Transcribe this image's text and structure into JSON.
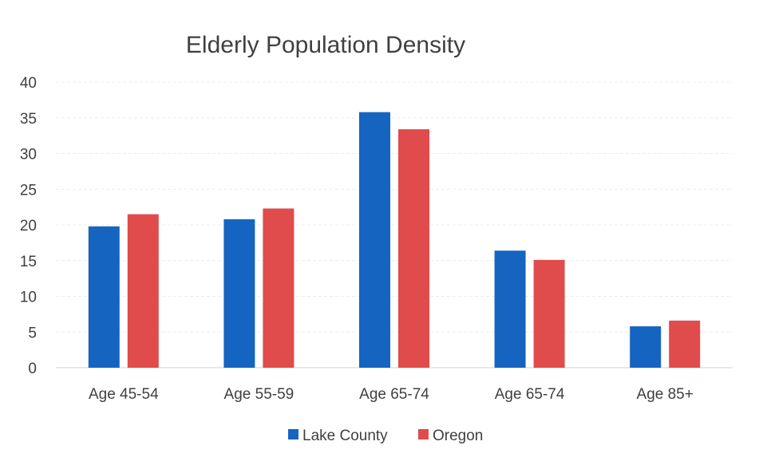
{
  "chart_data": {
    "type": "bar",
    "title": "Elderly Population Density",
    "xlabel": "",
    "ylabel": "",
    "categories": [
      "Age 45-54",
      "Age 55-59",
      "Age 65-74",
      "Age 65-74",
      "Age 85+"
    ],
    "series": [
      {
        "name": "Lake County",
        "values": [
          19.8,
          20.8,
          35.8,
          16.4,
          5.8
        ],
        "color": "#1565c0"
      },
      {
        "name": "Oregon",
        "values": [
          21.5,
          22.3,
          33.4,
          15.1,
          6.6
        ],
        "color": "#e04b4b"
      }
    ],
    "ylim": [
      0,
      40
    ],
    "yticks": [
      0,
      5,
      10,
      15,
      20,
      25,
      30,
      35,
      40
    ],
    "grid": true,
    "legend_position": "bottom"
  }
}
